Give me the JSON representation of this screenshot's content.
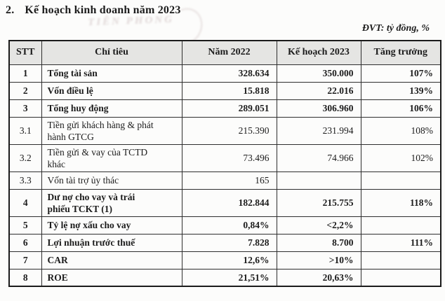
{
  "page": {
    "title_prefix": "2.",
    "title": "Kế hoạch kinh doanh năm 2023",
    "unit_note": "ĐVT: tỷ đồng, %",
    "watermark_text": "TIÊN PHONG"
  },
  "table": {
    "headers": [
      "STT",
      "Chỉ tiêu",
      "Năm 2022",
      "Kế hoạch 2023",
      "Tăng trưởng"
    ],
    "rows": [
      {
        "stt": "1",
        "label": "Tổng tài sản",
        "y2022": "328.634",
        "plan2023": "350.000",
        "growth": "107%",
        "bold": true
      },
      {
        "stt": "2",
        "label": "Vốn điều lệ",
        "y2022": "15.818",
        "plan2023": "22.016",
        "growth": "139%",
        "bold": true
      },
      {
        "stt": "3",
        "label": "Tổng huy động",
        "y2022": "289.051",
        "plan2023": "306.960",
        "growth": "106%",
        "bold": true
      },
      {
        "stt": "3.1",
        "label": "Tiền gửi khách hàng & phát\nhành GTCG",
        "y2022": "215.390",
        "plan2023": "231.994",
        "growth": "108%",
        "bold": false
      },
      {
        "stt": "3.2",
        "label": "Tiền gửi & vay của TCTD\nkhác",
        "y2022": "73.496",
        "plan2023": "74.966",
        "growth": "102%",
        "bold": false
      },
      {
        "stt": "3.3",
        "label": "Vốn tài trợ ủy thác",
        "y2022": "165",
        "plan2023": "",
        "growth": "",
        "bold": false
      },
      {
        "stt": "4",
        "label": "Dư nợ cho vay và trái\nphiếu TCKT (1)",
        "y2022": "182.844",
        "plan2023": "215.755",
        "growth": "118%",
        "bold": true
      },
      {
        "stt": "5",
        "label": "Tỷ lệ nợ xấu cho vay",
        "y2022": "0,84%",
        "plan2023": "<2,2%",
        "growth": "",
        "bold": true
      },
      {
        "stt": "6",
        "label": "Lợi nhuận trước thuế",
        "y2022": "7.828",
        "plan2023": "8.700",
        "growth": "111%",
        "bold": true
      },
      {
        "stt": "7",
        "label": "CAR",
        "y2022": "12,6%",
        "plan2023": ">10%",
        "growth": "",
        "bold": true
      },
      {
        "stt": "8",
        "label": "ROE",
        "y2022": "21,51%",
        "plan2023": "20,63%",
        "growth": "",
        "bold": true
      }
    ]
  },
  "colors": {
    "header_bg": "#e5e5e3",
    "border": "#2e2e2e",
    "text": "#1c1c1c",
    "watermark": "#9e8080"
  }
}
